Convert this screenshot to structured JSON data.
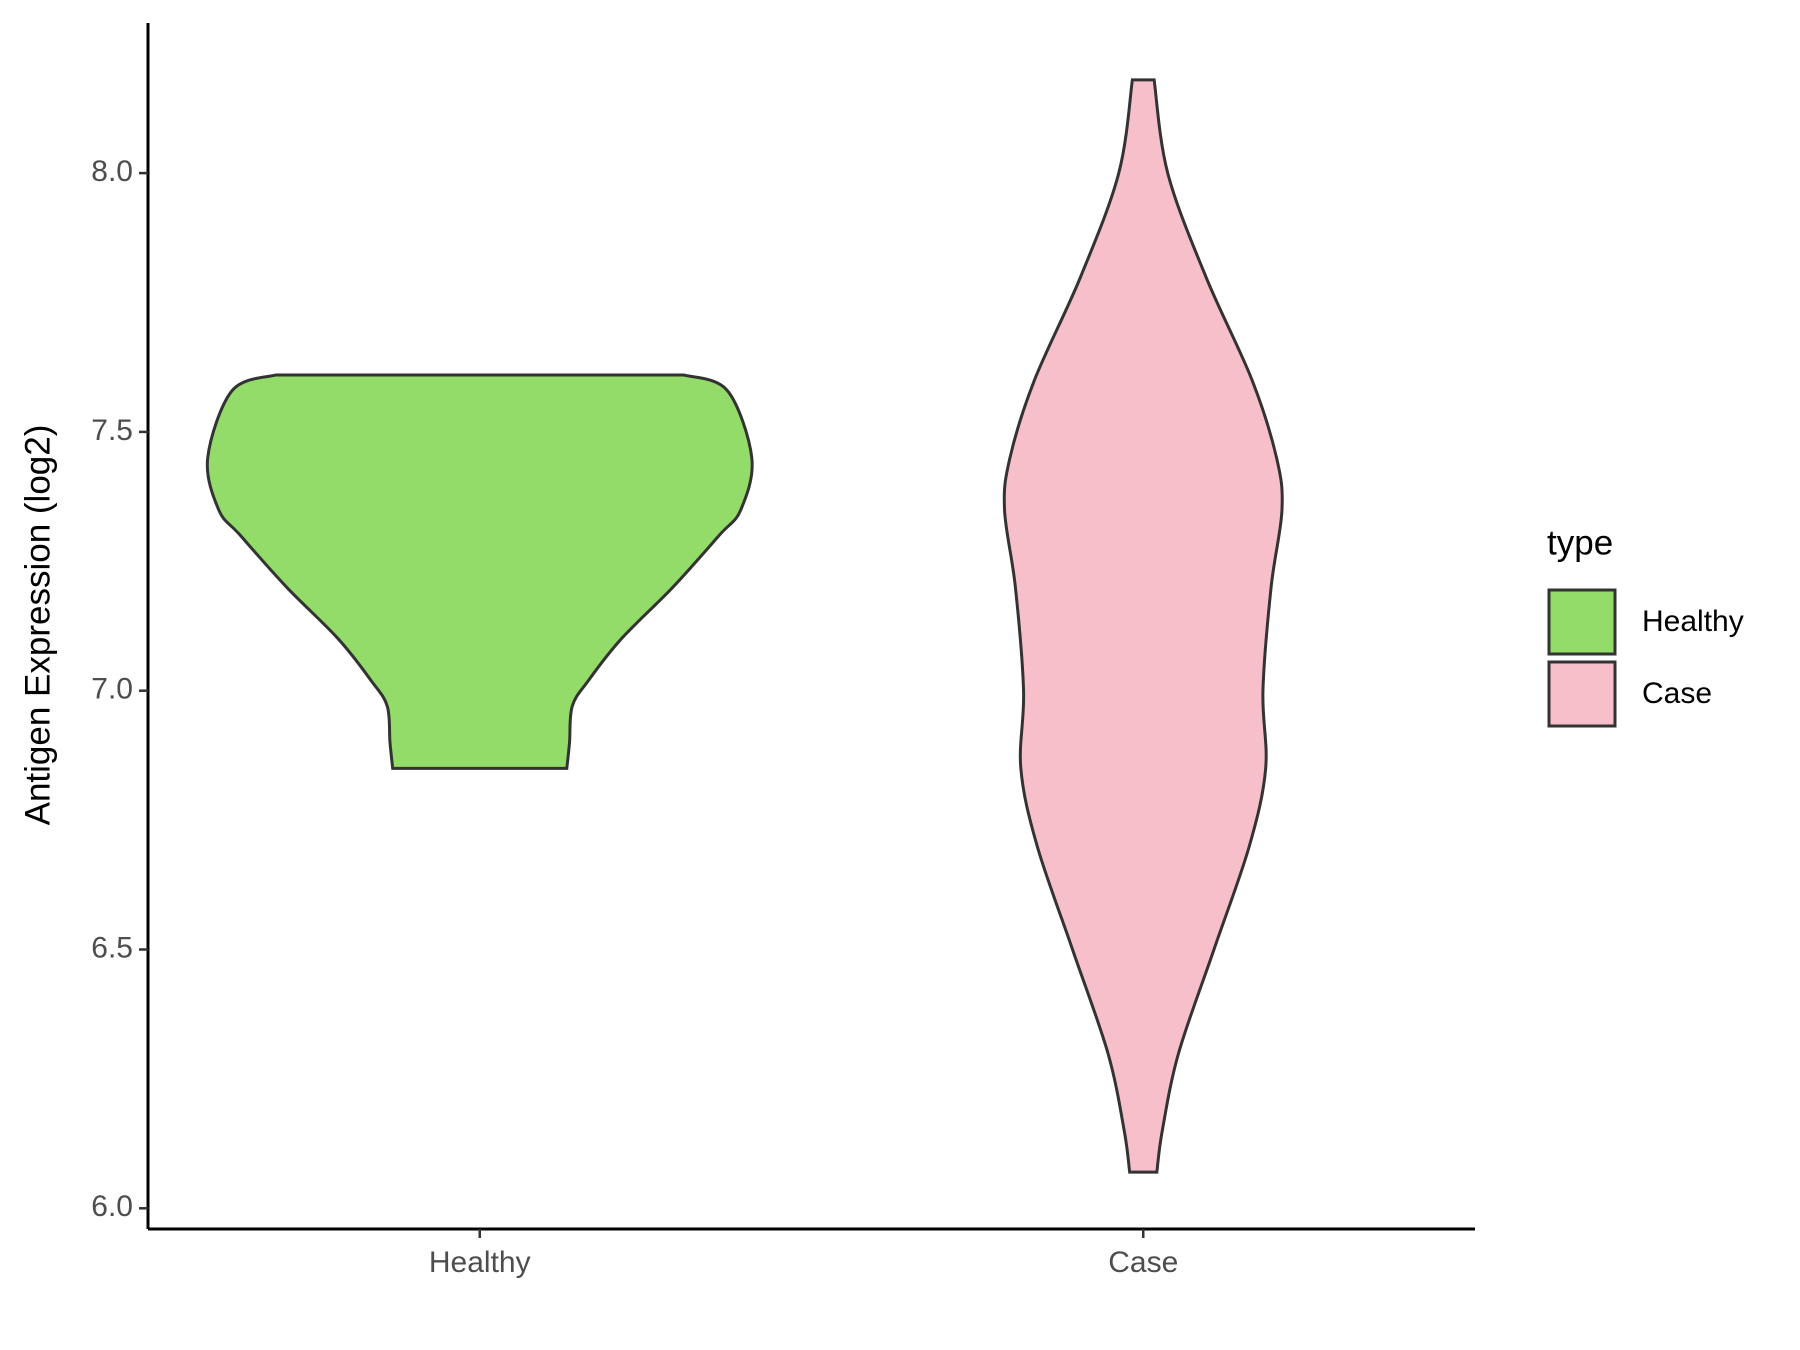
{
  "chart_data": {
    "type": "violin",
    "y_label": "Antigen Expression (log2)",
    "categories": [
      "Healthy",
      "Case"
    ],
    "legend_title": "type",
    "legend_position": "right",
    "ylim": [
      5.96,
      8.29
    ],
    "yticks": [
      {
        "value": 6,
        "label": "6.0"
      },
      6.5,
      {
        "value": 7,
        "label": "7.0"
      },
      7.5,
      {
        "value": 8,
        "label": "8.0"
      }
    ],
    "grid": false,
    "series": [
      {
        "name": "Healthy",
        "color": "#93dc6a",
        "y": [
          7.61,
          7.58,
          7.45,
          7.35,
          7.3,
          7.2,
          7.1,
          7.02,
          6.97,
          6.9,
          6.85
        ],
        "density": [
          0.75,
          0.91,
          1.0,
          0.96,
          0.88,
          0.71,
          0.52,
          0.4,
          0.34,
          0.33,
          0.32
        ]
      },
      {
        "name": "Case",
        "color": "#f7bfca",
        "y": [
          8.18,
          8.0,
          7.8,
          7.6,
          7.45,
          7.35,
          7.2,
          7.0,
          6.85,
          6.7,
          6.5,
          6.3,
          6.15,
          6.07
        ],
        "density": [
          0.04,
          0.09,
          0.23,
          0.4,
          0.49,
          0.51,
          0.47,
          0.44,
          0.45,
          0.39,
          0.26,
          0.13,
          0.07,
          0.05
        ]
      }
    ]
  }
}
